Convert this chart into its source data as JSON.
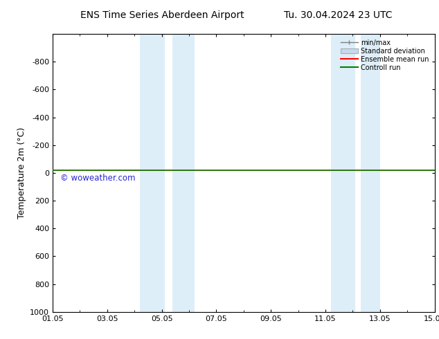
{
  "title": "ENS Time Series Aberdeen Airport",
  "title2": "Tu. 30.04.2024 23 UTC",
  "ylabel": "Temperature 2m (°C)",
  "xlim": [
    0,
    14
  ],
  "ylim": [
    -1000,
    1000
  ],
  "yticks": [
    -800,
    -600,
    -400,
    -200,
    0,
    200,
    400,
    600,
    800,
    1000
  ],
  "xtick_labels": [
    "01.05",
    "03.05",
    "05.05",
    "07.05",
    "09.05",
    "11.05",
    "13.05",
    "15.05"
  ],
  "xtick_positions": [
    0,
    2,
    4,
    6,
    8,
    10,
    12,
    14
  ],
  "blue_bands": [
    [
      3.2,
      4.1
    ],
    [
      4.4,
      5.2
    ],
    [
      10.2,
      11.1
    ],
    [
      11.3,
      12.0
    ]
  ],
  "control_run_y": -20,
  "ensemble_mean_y": -20,
  "watermark": "© woweather.com",
  "watermark_color": "#0000cc",
  "background_color": "#ffffff",
  "band_color": "#ddeef8",
  "legend_items": [
    "min/max",
    "Standard deviation",
    "Ensemble mean run",
    "Controll run"
  ],
  "legend_line_color": "#808080",
  "legend_std_color": "#c8d8e8",
  "ensemble_color": "#ff0000",
  "control_color": "#008000",
  "title_fontsize": 10,
  "axis_fontsize": 8,
  "ylabel_fontsize": 9
}
